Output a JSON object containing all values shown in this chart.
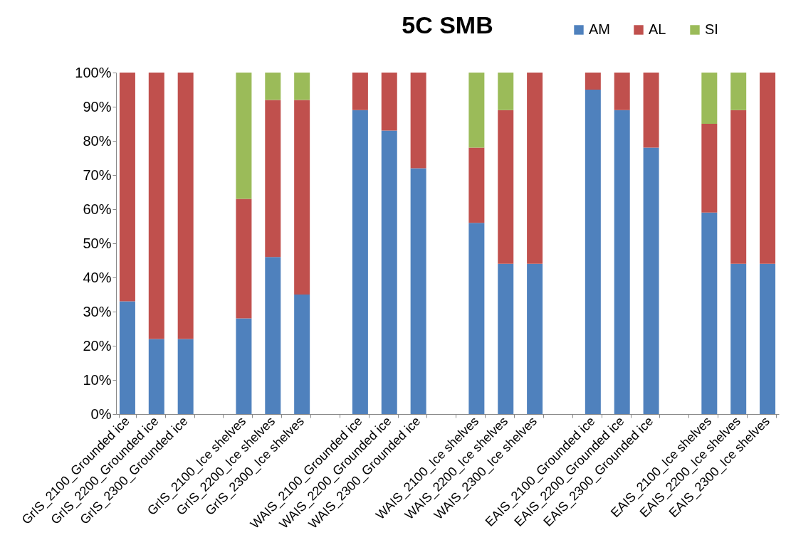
{
  "chart_data": {
    "type": "bar",
    "title": "5C SMB",
    "stacked": true,
    "legend": "top right",
    "grid": false,
    "categories": [
      "GrIS_2100_Grounded ice",
      "GrIS_2200_Grounded ice",
      "GrIS_2300_Grounded ice",
      null,
      "GrIS_2100_Ice shelves",
      "GrIS_2200_Ice shelves",
      "GrIS_2300_Ice shelves",
      null,
      "WAIS_2100_Grounded ice",
      "WAIS_2200_Grounded ice",
      "WAIS_2300_Grounded ice",
      null,
      "WAIS_2100_Ice shelves",
      "WAIS_2200_Ice shelves",
      "WAIS_2300_Ice shelves",
      null,
      "EAIS_2100_Grounded ice",
      "EAIS_2200_Grounded ice",
      "EAIS_2300_Grounded ice",
      null,
      "EAIS_2100_Ice shelves",
      "EAIS_2200_Ice shelves",
      "EAIS_2300_Ice shelves"
    ],
    "series": [
      {
        "name": "AM",
        "color": "#4f81bd",
        "values": [
          33,
          22,
          22,
          null,
          28,
          46,
          35,
          null,
          89,
          83,
          72,
          null,
          56,
          44,
          44,
          null,
          95,
          89,
          78,
          null,
          59,
          44,
          44
        ]
      },
      {
        "name": "AL",
        "color": "#c0504d",
        "values": [
          67,
          78,
          78,
          null,
          35,
          46,
          57,
          null,
          11,
          17,
          28,
          null,
          22,
          45,
          56,
          null,
          5,
          11,
          22,
          null,
          26,
          45,
          56
        ]
      },
      {
        "name": "SI",
        "color": "#9bbb59",
        "values": [
          0,
          0,
          0,
          null,
          37,
          8,
          8,
          null,
          0,
          0,
          0,
          null,
          22,
          11,
          0,
          null,
          0,
          0,
          0,
          null,
          15,
          11,
          0
        ]
      }
    ],
    "ylim": [
      0,
      100
    ],
    "yticks": [
      {
        "value": 0,
        "label": "0%"
      },
      {
        "value": 10,
        "label": "10%"
      },
      {
        "value": 20,
        "label": "20%"
      },
      {
        "value": 30,
        "label": "30%"
      },
      {
        "value": 40,
        "label": "40%"
      },
      {
        "value": 50,
        "label": "50%"
      },
      {
        "value": 60,
        "label": "60%"
      },
      {
        "value": 70,
        "label": "70%"
      },
      {
        "value": 80,
        "label": "80%"
      },
      {
        "value": 90,
        "label": "90%"
      },
      {
        "value": 100,
        "label": "100%"
      }
    ]
  }
}
